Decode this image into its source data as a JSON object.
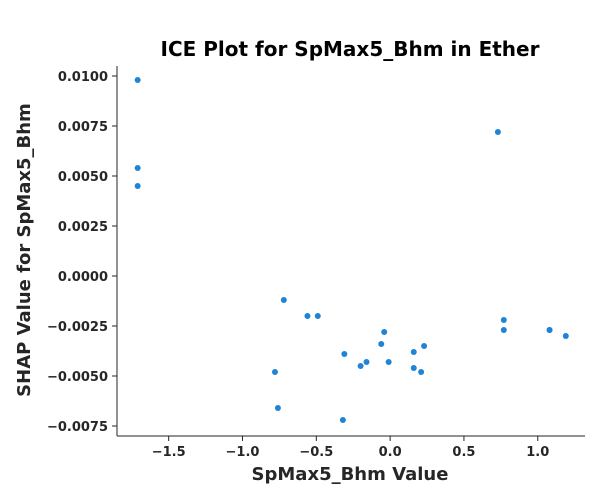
{
  "chart_data": {
    "type": "scatter",
    "title": "ICE Plot for SpMax5_Bhm in Ether",
    "xlabel": "SpMax5_Bhm Value",
    "ylabel": "SHAP Value for SpMax5_Bhm",
    "xlim": [
      -1.85,
      1.32
    ],
    "ylim": [
      -0.008,
      0.0105
    ],
    "xticks": [
      -1.5,
      -1.0,
      -0.5,
      0.0,
      0.5,
      1.0
    ],
    "xtick_labels": [
      "−1.5",
      "−1.0",
      "−0.5",
      "0.0",
      "0.5",
      "1.0"
    ],
    "yticks": [
      -0.0075,
      -0.005,
      -0.0025,
      0.0,
      0.0025,
      0.005,
      0.0075,
      0.01
    ],
    "ytick_labels": [
      "−0.0075",
      "−0.0050",
      "−0.0025",
      "0.0000",
      "0.0025",
      "0.0050",
      "0.0075",
      "0.0100"
    ],
    "grid": false,
    "point_color": "#1f84d6",
    "points": [
      {
        "x": -1.71,
        "y": 0.0098
      },
      {
        "x": -1.71,
        "y": 0.0054
      },
      {
        "x": -1.71,
        "y": 0.0045
      },
      {
        "x": -0.72,
        "y": -0.0012
      },
      {
        "x": -0.56,
        "y": -0.002
      },
      {
        "x": -0.49,
        "y": -0.002
      },
      {
        "x": -0.78,
        "y": -0.0048
      },
      {
        "x": -0.76,
        "y": -0.0066
      },
      {
        "x": -0.32,
        "y": -0.0072
      },
      {
        "x": -0.31,
        "y": -0.0039
      },
      {
        "x": -0.2,
        "y": -0.0045
      },
      {
        "x": -0.16,
        "y": -0.0043
      },
      {
        "x": -0.06,
        "y": -0.0034
      },
      {
        "x": -0.04,
        "y": -0.0028
      },
      {
        "x": -0.01,
        "y": -0.0043
      },
      {
        "x": 0.16,
        "y": -0.0038
      },
      {
        "x": 0.16,
        "y": -0.0046
      },
      {
        "x": 0.21,
        "y": -0.0048
      },
      {
        "x": 0.23,
        "y": -0.0035
      },
      {
        "x": 0.73,
        "y": 0.0072
      },
      {
        "x": 0.77,
        "y": -0.0022
      },
      {
        "x": 0.77,
        "y": -0.0027
      },
      {
        "x": 1.08,
        "y": -0.0027
      },
      {
        "x": 1.08,
        "y": -0.0027
      },
      {
        "x": 1.19,
        "y": -0.003
      }
    ]
  }
}
